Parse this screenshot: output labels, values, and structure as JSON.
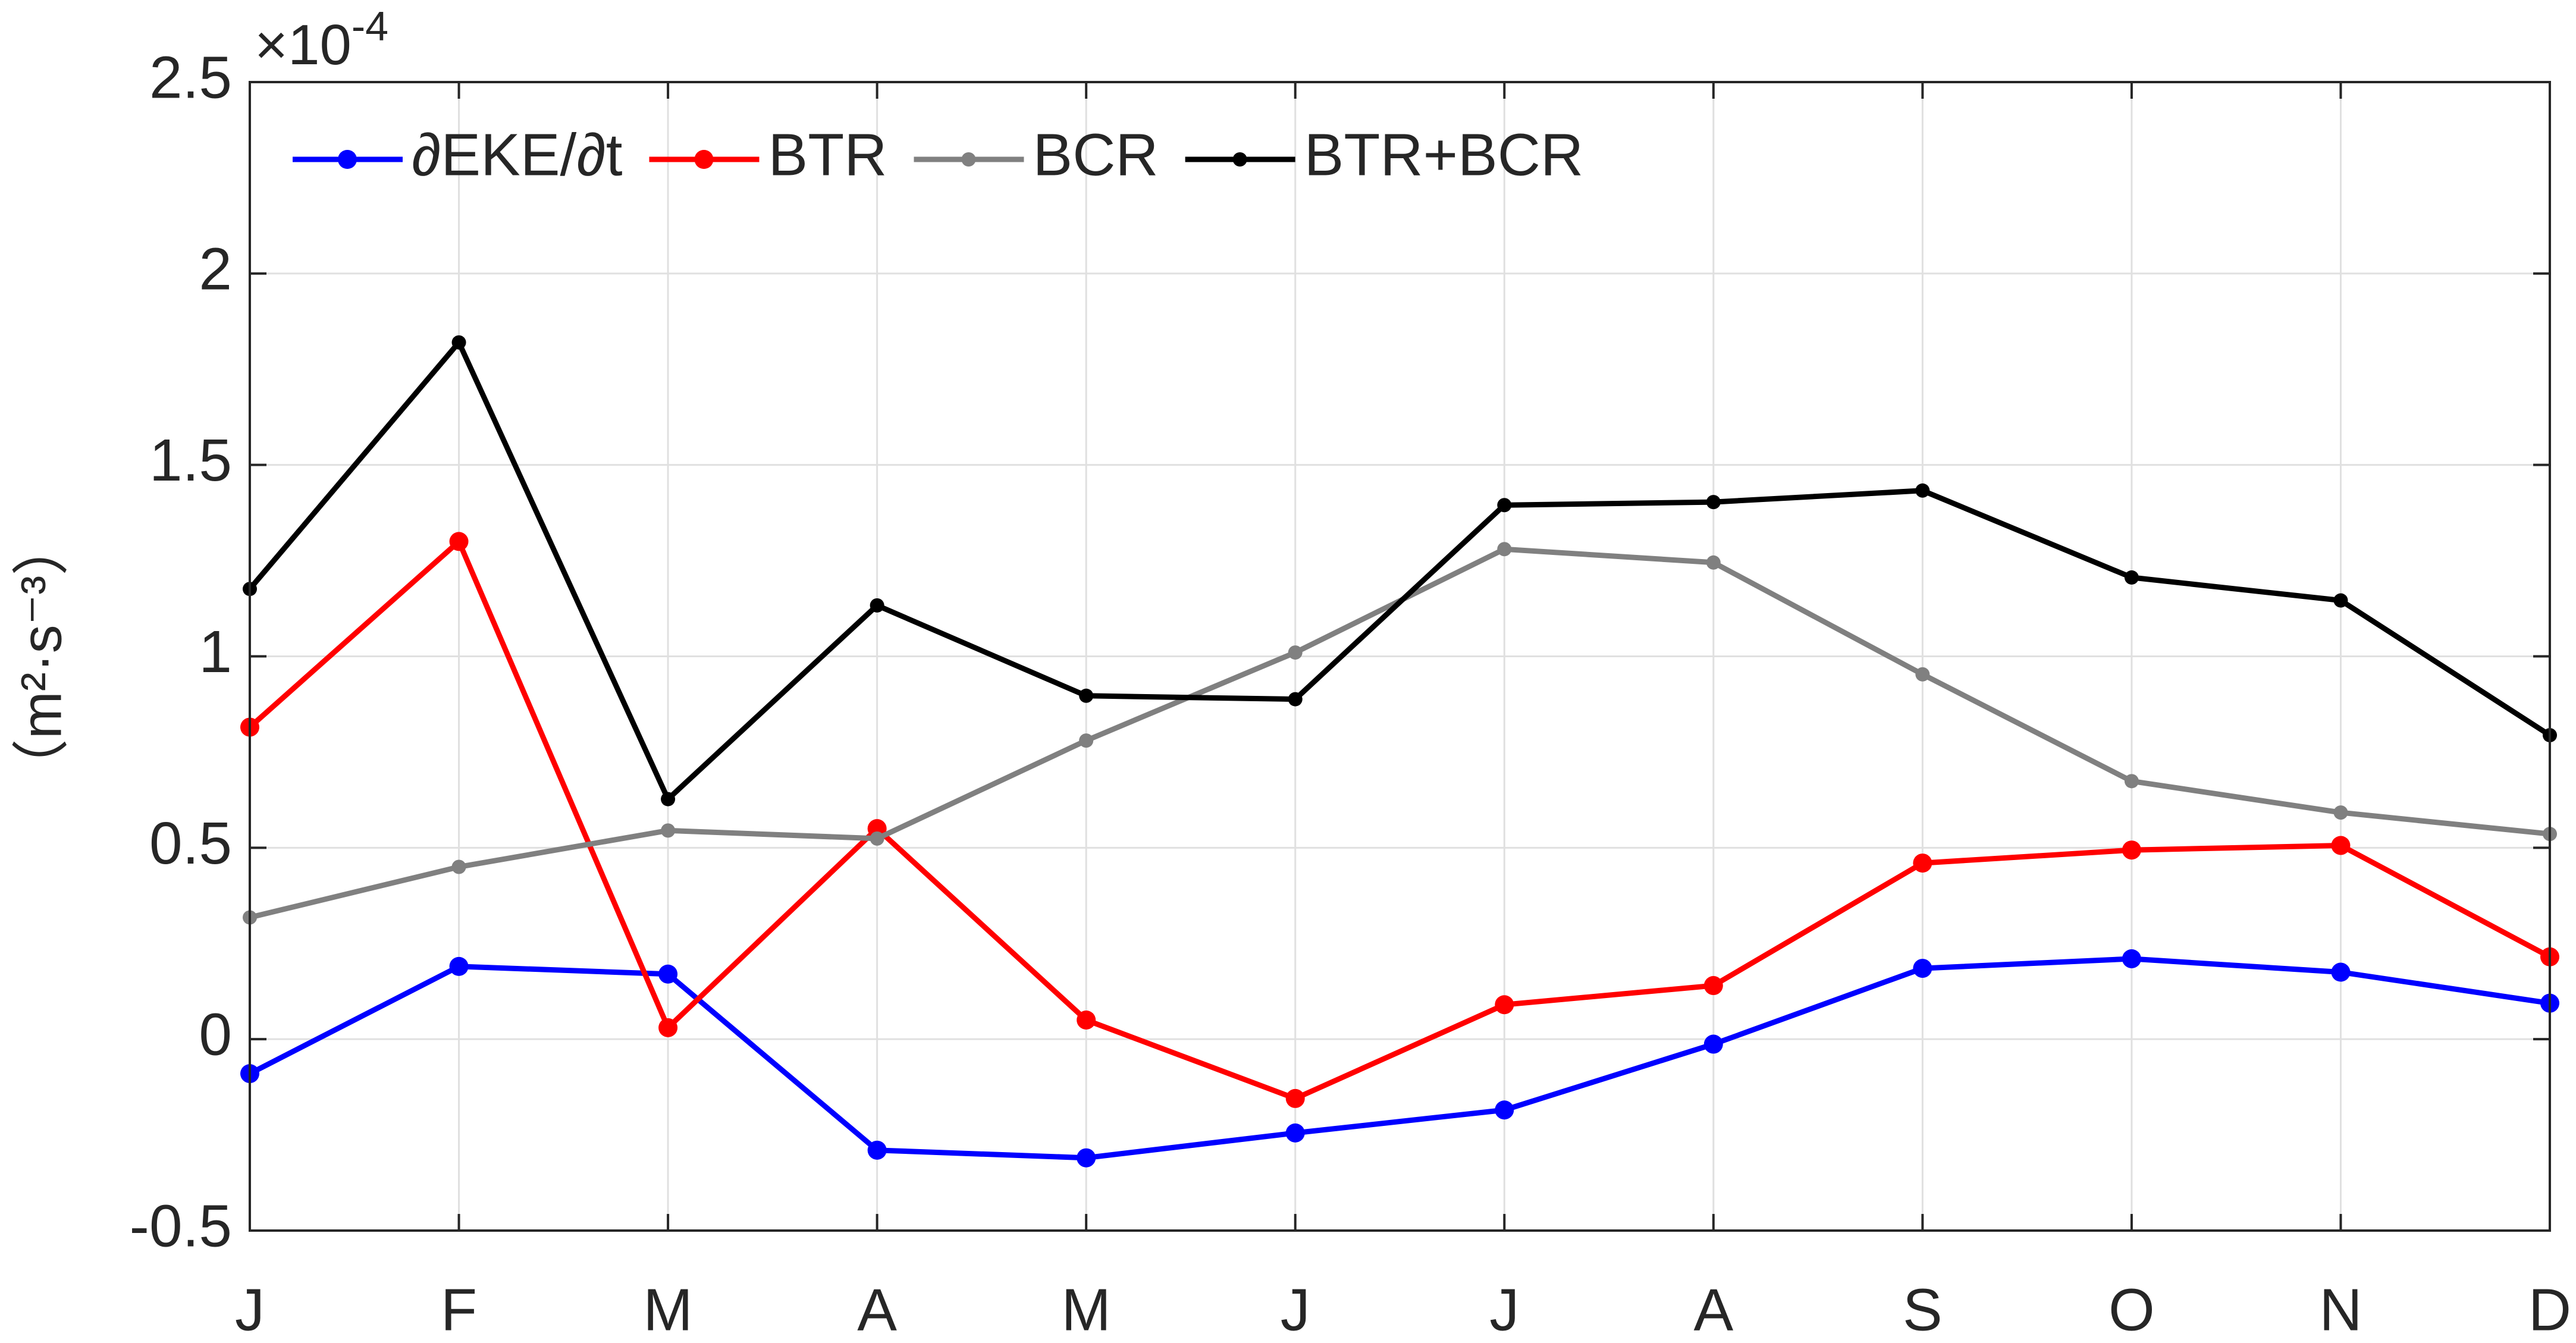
{
  "chart_data": {
    "type": "line",
    "ylabel": "（m²·s⁻³）",
    "y_multiplier": {
      "base": "×10",
      "exponent": "-4"
    },
    "categories": [
      "J",
      "F",
      "M",
      "A",
      "M",
      "J",
      "J",
      "A",
      "S",
      "O",
      "N",
      "D"
    ],
    "series": [
      {
        "name": "∂EKE/∂t",
        "color": "#0000ff",
        "values": [
          -0.09,
          0.19,
          0.17,
          -0.29,
          -0.31,
          -0.245,
          -0.185,
          -0.013,
          0.185,
          0.21,
          0.175,
          0.094
        ]
      },
      {
        "name": "BTR",
        "color": "#ff0000",
        "values": [
          0.815,
          1.3,
          0.03,
          0.55,
          0.05,
          -0.155,
          0.09,
          0.14,
          0.46,
          0.494,
          0.506,
          0.215
        ]
      },
      {
        "name": "BCR",
        "color": "#808080",
        "values": [
          0.318,
          0.45,
          0.545,
          0.524,
          0.78,
          1.01,
          1.28,
          1.245,
          0.953,
          0.674,
          0.592,
          0.536
        ]
      },
      {
        "name": "BTR+BCR",
        "color": "#000000",
        "values": [
          1.176,
          1.82,
          0.627,
          1.133,
          0.897,
          0.888,
          1.395,
          1.403,
          1.433,
          1.206,
          1.146,
          0.794
        ]
      }
    ],
    "ylim": [
      -0.5,
      2.5
    ],
    "yticks": [
      -0.5,
      0,
      0.5,
      1,
      1.5,
      2,
      2.5
    ],
    "grid": true,
    "legend": "top-left"
  }
}
